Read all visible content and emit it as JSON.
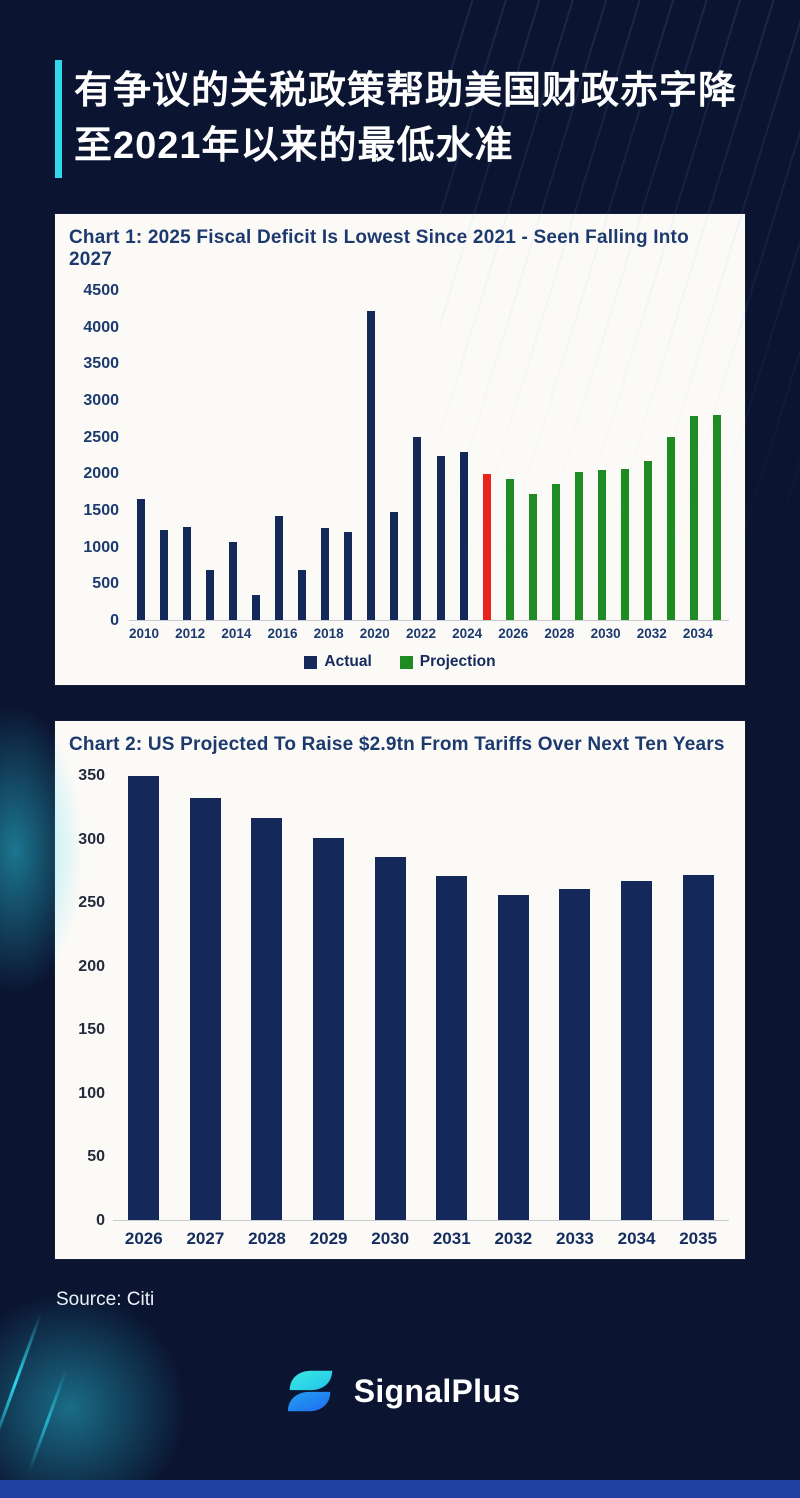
{
  "header": {
    "title_line1": "有争议的关税政策帮助美国财政赤字降",
    "title_line2": "至2021年以来的最低水准"
  },
  "chart_data": [
    {
      "id": "chart1",
      "type": "bar",
      "title": "Chart 1: 2025 Fiscal Deficit Is Lowest Since 2021 - Seen Falling Into 2027",
      "ylim": [
        0,
        4500
      ],
      "yticks": [
        0,
        500,
        1000,
        1500,
        2000,
        2500,
        3000,
        3500,
        4000,
        4500
      ],
      "x": [
        2010,
        2011,
        2012,
        2013,
        2014,
        2015,
        2016,
        2017,
        2018,
        2019,
        2020,
        2021,
        2022,
        2023,
        2024,
        2025,
        2026,
        2027,
        2028,
        2029,
        2030,
        2031,
        2032,
        2033,
        2034,
        2035
      ],
      "values": [
        1650,
        1230,
        1270,
        680,
        1070,
        340,
        1420,
        680,
        1260,
        1200,
        4220,
        1480,
        2510,
        2240,
        2300,
        2000,
        1930,
        1730,
        1860,
        2030,
        2050,
        2060,
        2170,
        2500,
        2790,
        2810
      ],
      "xtick_labels": [
        "2010",
        "2012",
        "2014",
        "2016",
        "2018",
        "2020",
        "2022",
        "2024",
        "2026",
        "2028",
        "2030",
        "2032",
        "2034"
      ],
      "highlight_year": 2025,
      "grid": false,
      "legend_position": "bottom",
      "colors": {
        "actual": "#14295A",
        "highlight": "#E8231B",
        "projection": "#1E8C22"
      },
      "legend": [
        {
          "label": "Actual",
          "color": "#14295A"
        },
        {
          "label": "Projection",
          "color": "#1E8C22"
        }
      ]
    },
    {
      "id": "chart2",
      "type": "bar",
      "title": "Chart 2: US Projected To Raise $2.9tn From Tariffs Over Next Ten Years",
      "ylim": [
        0,
        350
      ],
      "yticks": [
        0,
        50,
        100,
        150,
        200,
        250,
        300,
        350
      ],
      "categories": [
        "2026",
        "2027",
        "2028",
        "2029",
        "2030",
        "2031",
        "2032",
        "2033",
        "2034",
        "2035"
      ],
      "values": [
        350,
        333,
        317,
        301,
        286,
        271,
        256,
        261,
        267,
        272
      ],
      "grid": false,
      "bar_color": "#14295A"
    }
  ],
  "footer": {
    "source": "Source: Citi",
    "brand": "SignalPlus"
  },
  "theme": {
    "background": "#0B1531",
    "accent_cyan": "#2FD9EE",
    "card_background": "#FBFAF7",
    "chart_title_color": "#1D3A6E",
    "bottom_bar_color": "#1F42A2"
  }
}
